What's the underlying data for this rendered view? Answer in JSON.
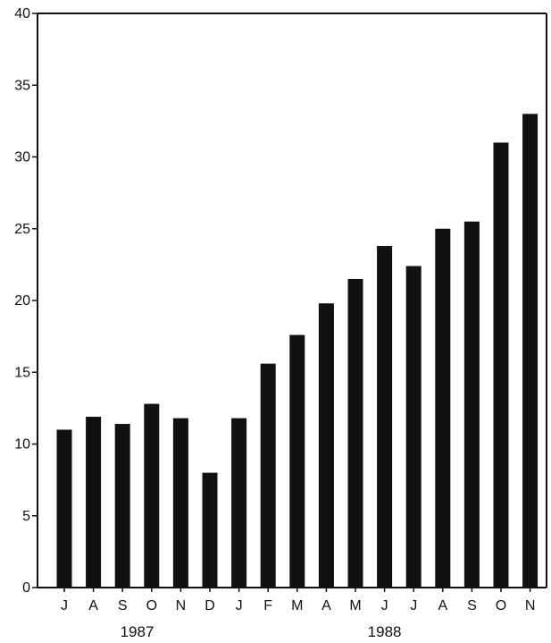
{
  "chart_data": {
    "type": "bar",
    "title": "",
    "xlabel": "",
    "ylabel": "",
    "categories": [
      "J",
      "A",
      "S",
      "O",
      "N",
      "D",
      "J",
      "F",
      "M",
      "A",
      "M",
      "J",
      "J",
      "A",
      "S",
      "O",
      "N"
    ],
    "values": [
      11.0,
      11.9,
      11.4,
      12.8,
      11.8,
      8.0,
      11.8,
      15.6,
      17.6,
      19.8,
      21.5,
      23.8,
      22.4,
      25.0,
      25.5,
      31.0,
      33.0
    ],
    "year_groups": [
      {
        "label": "1987",
        "start": 0,
        "end": 5
      },
      {
        "label": "1988",
        "start": 6,
        "end": 16
      }
    ],
    "ylim": [
      0,
      40
    ],
    "yticks": [
      "0",
      "5",
      "10",
      "15",
      "20",
      "25",
      "30",
      "35",
      "40"
    ],
    "grid": false,
    "legend": "none",
    "bar_color": "#111111"
  }
}
